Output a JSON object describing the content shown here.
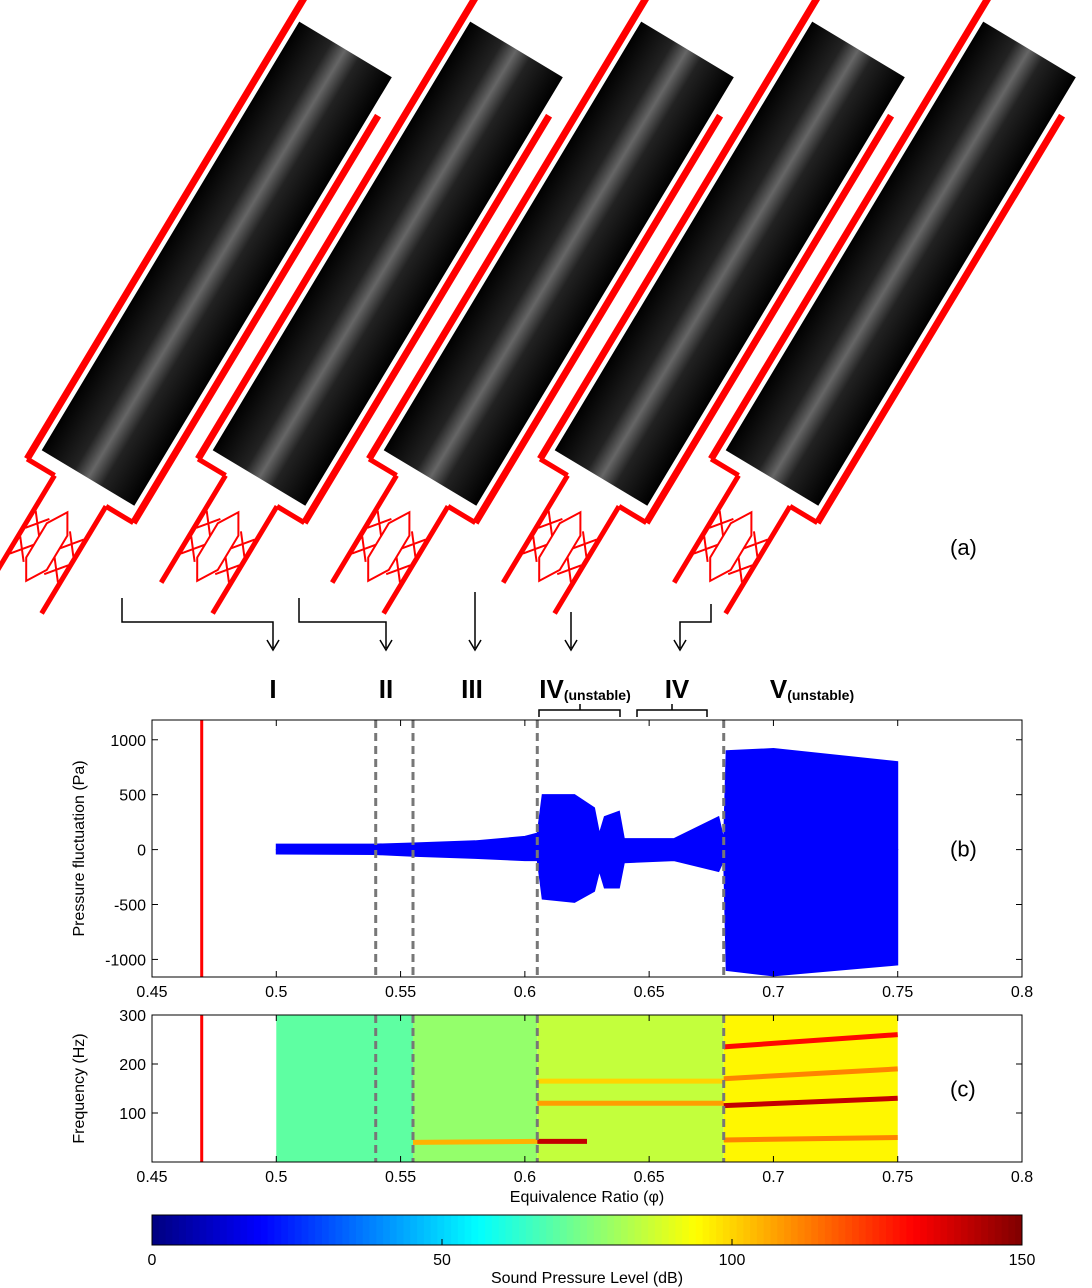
{
  "panel_a": {
    "label": "(a)"
  },
  "regimes": [
    {
      "label": "I"
    },
    {
      "label": "II"
    },
    {
      "label": "III"
    },
    {
      "label": "IV",
      "sub": "(unstable)"
    },
    {
      "label": "IV"
    },
    {
      "label": "V",
      "sub": "(unstable)"
    }
  ],
  "chart_data": [
    {
      "type": "band",
      "label": "(b)",
      "ylabel": "Pressure fluctuation (Pa)",
      "x": [
        0.5,
        0.54,
        0.555,
        0.58,
        0.6,
        0.605,
        0.607,
        0.62,
        0.628,
        0.63,
        0.632,
        0.638,
        0.64,
        0.66,
        0.678,
        0.68,
        0.681,
        0.7,
        0.75
      ],
      "upper": [
        50,
        50,
        60,
        80,
        120,
        150,
        500,
        500,
        380,
        150,
        300,
        350,
        100,
        100,
        300,
        100,
        900,
        920,
        800
      ],
      "lower": [
        -40,
        -45,
        -60,
        -80,
        -100,
        -100,
        -450,
        -480,
        -380,
        -200,
        -350,
        -350,
        -120,
        -100,
        -200,
        -100,
        -1100,
        -1150,
        -1050
      ],
      "color": "#0000ff",
      "xlim": [
        0.45,
        0.8
      ],
      "xticks": [
        0.45,
        0.5,
        0.55,
        0.6,
        0.65,
        0.7,
        0.75,
        0.8
      ],
      "ylim": [
        -1160,
        1180
      ],
      "yticks": [
        -1000,
        -500,
        0,
        500,
        1000
      ],
      "vlines": [
        {
          "x": 0.47,
          "color": "#ff0000",
          "dashed": false
        },
        {
          "x": 0.54,
          "color": "#777777",
          "dashed": true
        },
        {
          "x": 0.555,
          "color": "#777777",
          "dashed": true
        },
        {
          "x": 0.605,
          "color": "#777777",
          "dashed": true
        },
        {
          "x": 0.68,
          "color": "#777777",
          "dashed": true
        }
      ]
    },
    {
      "type": "spectrogram",
      "label": "(c)",
      "xlabel": "Equivalence Ratio (φ)",
      "ylabel": "Frequency (Hz)",
      "xlim": [
        0.45,
        0.8
      ],
      "xticks": [
        0.45,
        0.5,
        0.55,
        0.6,
        0.65,
        0.7,
        0.75,
        0.8
      ],
      "ylim": [
        0,
        300
      ],
      "yticks": [
        100,
        200,
        300
      ],
      "regions": [
        {
          "x": [
            0.5,
            0.555
          ],
          "level": 70
        },
        {
          "x": [
            0.555,
            0.605
          ],
          "level": 78
        },
        {
          "x": [
            0.605,
            0.68
          ],
          "level": 85
        },
        {
          "x": [
            0.68,
            0.75
          ],
          "level": 95
        }
      ],
      "tones": [
        {
          "x": [
            0.555,
            0.605
          ],
          "f": [
            40,
            42
          ],
          "level": 105
        },
        {
          "x": [
            0.605,
            0.625
          ],
          "f": [
            42,
            42
          ],
          "level": 140
        },
        {
          "x": [
            0.605,
            0.68
          ],
          "f": [
            120,
            120
          ],
          "level": 108
        },
        {
          "x": [
            0.605,
            0.68
          ],
          "f": [
            165,
            165
          ],
          "level": 100
        },
        {
          "x": [
            0.68,
            0.75
          ],
          "f": [
            115,
            130
          ],
          "level": 140
        },
        {
          "x": [
            0.68,
            0.75
          ],
          "f": [
            235,
            260
          ],
          "level": 130
        },
        {
          "x": [
            0.68,
            0.75
          ],
          "f": [
            170,
            190
          ],
          "level": 112
        },
        {
          "x": [
            0.68,
            0.75
          ],
          "f": [
            45,
            50
          ],
          "level": 112
        }
      ],
      "vlines": [
        {
          "x": 0.47,
          "color": "#ff0000",
          "dashed": false
        },
        {
          "x": 0.54,
          "color": "#777777",
          "dashed": true
        },
        {
          "x": 0.555,
          "color": "#777777",
          "dashed": true
        },
        {
          "x": 0.605,
          "color": "#777777",
          "dashed": true
        },
        {
          "x": 0.68,
          "color": "#777777",
          "dashed": true
        }
      ]
    },
    {
      "type": "colorbar",
      "label": "Sound Pressure Level (dB)",
      "clim": [
        0,
        150
      ],
      "ticks": [
        0,
        50,
        100,
        150
      ]
    }
  ]
}
